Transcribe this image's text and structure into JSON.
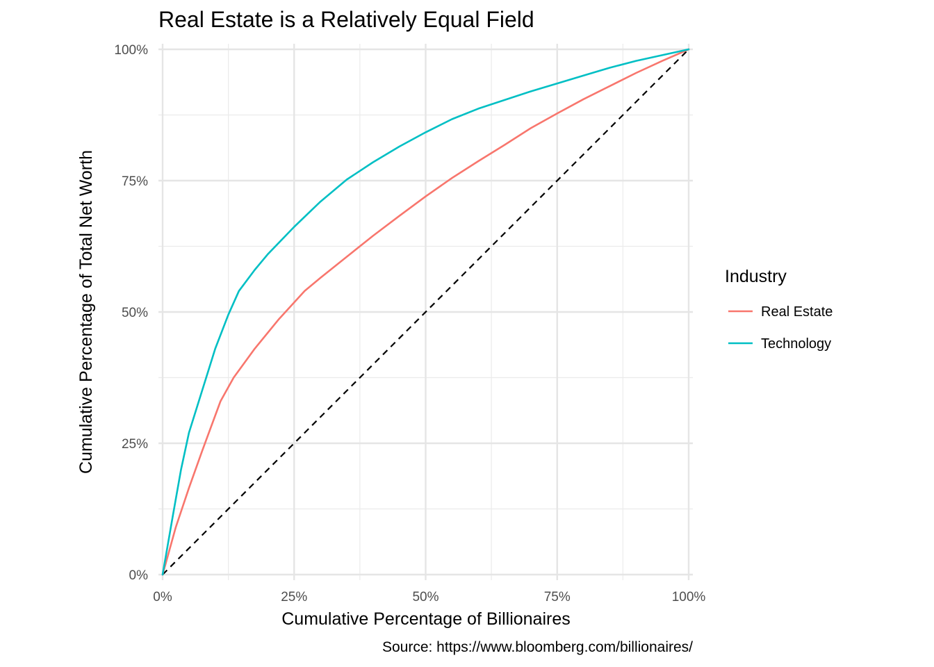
{
  "chart_data": {
    "type": "line",
    "title": "Real Estate is a Relatively Equal Field",
    "xlabel": "Cumulative Percentage of Billionaires",
    "ylabel": "Cumulative Percentage of Total Net Worth",
    "caption": "Source: https://www.bloomberg.com/billionaires/",
    "xlim": [
      0,
      100
    ],
    "ylim": [
      0,
      100
    ],
    "x_ticks": [
      "0%",
      "25%",
      "50%",
      "75%",
      "100%"
    ],
    "y_ticks": [
      "0%",
      "25%",
      "50%",
      "75%",
      "100%"
    ],
    "grid": true,
    "legend": {
      "title": "Industry",
      "position": "right"
    },
    "reference_line": {
      "style": "dashed",
      "color": "#000000",
      "points": [
        [
          0,
          0
        ],
        [
          100,
          100
        ]
      ]
    },
    "series": [
      {
        "name": "Real Estate",
        "color": "#F8766D",
        "points": [
          [
            0,
            0
          ],
          [
            2.5,
            9
          ],
          [
            5,
            16.5
          ],
          [
            7.5,
            23.5
          ],
          [
            11,
            33
          ],
          [
            13.5,
            37.5
          ],
          [
            17.5,
            43
          ],
          [
            22,
            48.5
          ],
          [
            27,
            54
          ],
          [
            30,
            56.5
          ],
          [
            35,
            60.5
          ],
          [
            40,
            64.5
          ],
          [
            45,
            68.3
          ],
          [
            50,
            72
          ],
          [
            55,
            75.5
          ],
          [
            60,
            78.7
          ],
          [
            65,
            81.8
          ],
          [
            70,
            85
          ],
          [
            75,
            87.8
          ],
          [
            80,
            90.5
          ],
          [
            85,
            93
          ],
          [
            90,
            95.5
          ],
          [
            95,
            97.8
          ],
          [
            100,
            100
          ]
        ]
      },
      {
        "name": "Technology",
        "color": "#00BFC4",
        "points": [
          [
            0,
            0
          ],
          [
            2,
            11.5
          ],
          [
            3.5,
            20
          ],
          [
            5,
            27
          ],
          [
            7.5,
            35
          ],
          [
            10,
            43
          ],
          [
            12.5,
            49.5
          ],
          [
            14.5,
            54
          ],
          [
            17.5,
            58
          ],
          [
            20,
            61
          ],
          [
            25,
            66.2
          ],
          [
            30,
            71
          ],
          [
            35,
            75.2
          ],
          [
            40,
            78.5
          ],
          [
            45,
            81.5
          ],
          [
            50,
            84.2
          ],
          [
            55,
            86.7
          ],
          [
            60,
            88.7
          ],
          [
            70,
            92
          ],
          [
            75,
            93.5
          ],
          [
            80,
            95
          ],
          [
            85,
            96.5
          ],
          [
            90,
            97.8
          ],
          [
            100,
            100
          ]
        ]
      }
    ]
  }
}
